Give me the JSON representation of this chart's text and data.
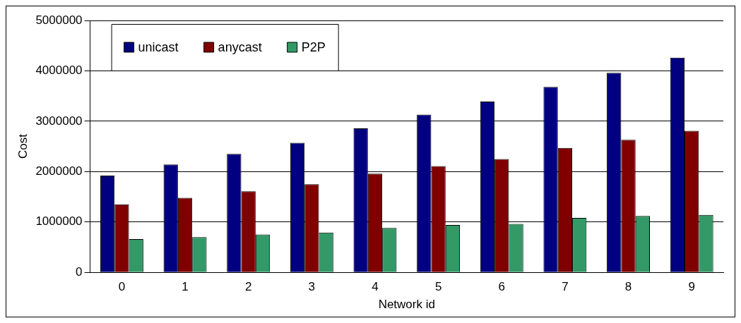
{
  "chart_data": {
    "type": "bar",
    "xlabel": "Network id",
    "ylabel": "Cost",
    "categories": [
      "0",
      "1",
      "2",
      "3",
      "4",
      "5",
      "6",
      "7",
      "8",
      "9"
    ],
    "series": [
      {
        "name": "unicast",
        "color": "#000080",
        "values": [
          1920000,
          2140000,
          2350000,
          2570000,
          2860000,
          3130000,
          3390000,
          3680000,
          3960000,
          4260000
        ]
      },
      {
        "name": "anycast",
        "color": "#800000",
        "values": [
          1350000,
          1480000,
          1610000,
          1750000,
          1960000,
          2110000,
          2250000,
          2470000,
          2630000,
          2810000
        ]
      },
      {
        "name": "P2P",
        "color": "#339966",
        "values": [
          660000,
          700000,
          750000,
          790000,
          880000,
          940000,
          960000,
          1080000,
          1120000,
          1140000
        ]
      }
    ],
    "ylim": [
      0,
      5000000
    ],
    "yticks": [
      0,
      1000000,
      2000000,
      3000000,
      4000000,
      5000000
    ],
    "grid": "y",
    "legend": "top left"
  }
}
